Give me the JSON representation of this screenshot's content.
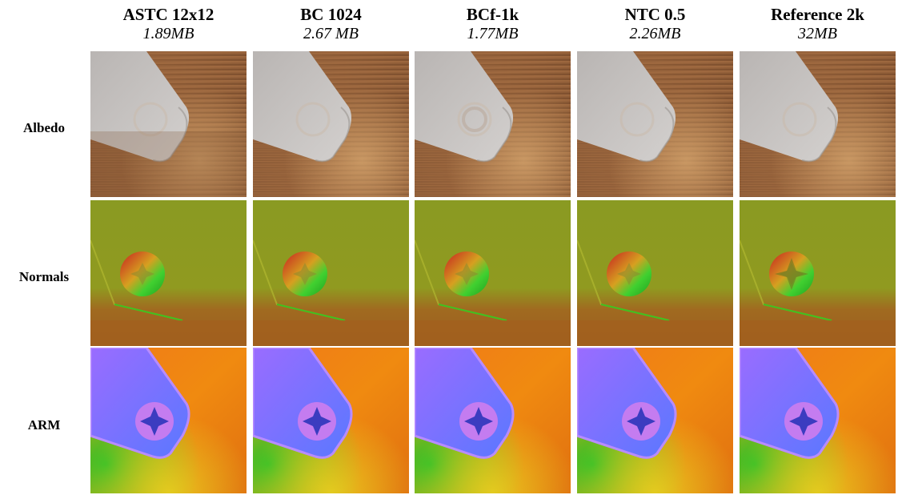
{
  "columns": [
    {
      "title": "ASTC 12x12",
      "size": "1.89MB"
    },
    {
      "title": "BC 1024",
      "size": "2.67 MB"
    },
    {
      "title": "BCf-1k",
      "size": "1.77MB"
    },
    {
      "title": "NTC 0.5",
      "size": "2.26MB"
    },
    {
      "title": "Reference 2k",
      "size": "32MB"
    }
  ],
  "rows": [
    {
      "label": "Albedo"
    },
    {
      "label": "Normals"
    },
    {
      "label": "ARM"
    }
  ]
}
